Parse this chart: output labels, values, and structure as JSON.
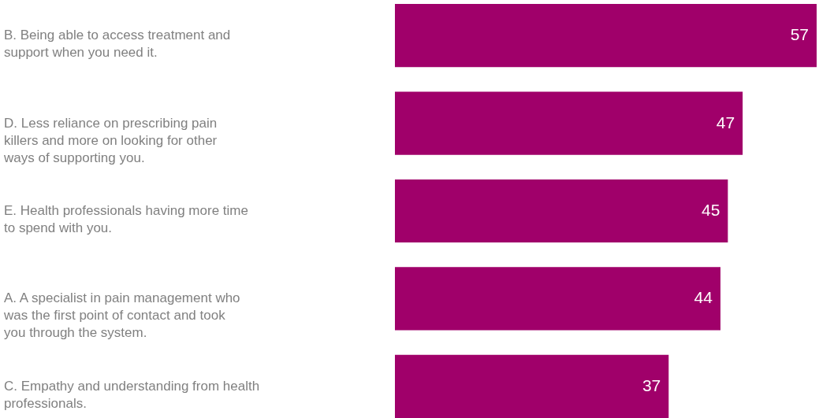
{
  "chart_data": {
    "type": "bar",
    "orientation": "horizontal",
    "categories": [
      "B. Being able to access treatment and support when you need it.",
      "D. Less reliance on prescribing pain killers and more on looking for other ways of supporting you.",
      "E. Health professionals having more time to spend with you.",
      "A. A specialist in pain management who was the first point of contact and took you through the system.",
      "C. Empathy and understanding from health professionals."
    ],
    "values": [
      57,
      47,
      45,
      44,
      37
    ],
    "color": "#a0006a",
    "data_labels": true
  }
}
